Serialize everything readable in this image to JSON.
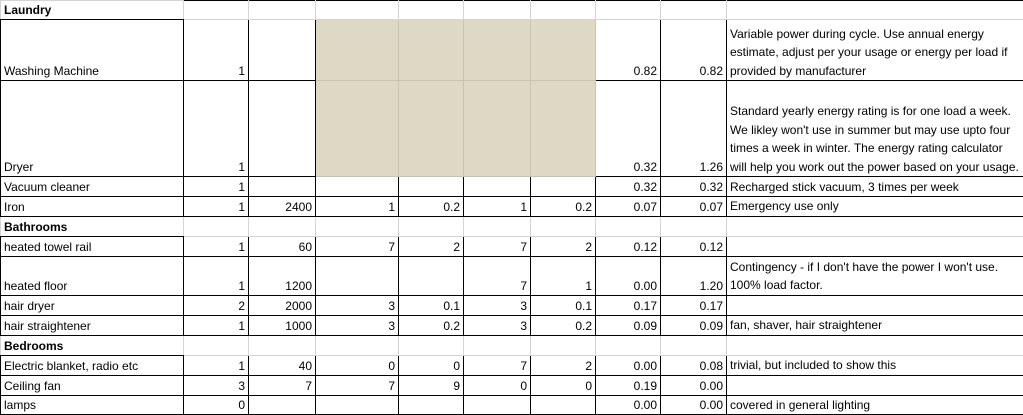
{
  "sections": [
    {
      "title": "Laundry",
      "rows": [
        [
          "Washing Machine",
          "1",
          null,
          null,
          null,
          null,
          null,
          "0.82",
          "0.82",
          "Variable power during cycle. Use annual energy estimate, adjust per your usage or energy per load if provided by manufacturer"
        ],
        [
          "Dryer",
          "1",
          null,
          null,
          null,
          null,
          null,
          "0.32",
          "1.26",
          "Standard yearly energy rating is for one load a week. We likley won't use in summer but may use upto four times a week in winter. The energy rating calculator will help you work out the power based on your usage."
        ],
        [
          "Vacuum cleaner",
          "1",
          null,
          null,
          null,
          null,
          null,
          "0.32",
          "0.32",
          "Recharged stick vacuum, 3 times per week"
        ],
        [
          "Iron",
          "1",
          "2400",
          "1",
          "0.2",
          "1",
          "0.2",
          "0.07",
          "0.07",
          "Emergency use only"
        ]
      ]
    },
    {
      "title": "Bathrooms",
      "rows": [
        [
          "heated towel rail",
          "1",
          "60",
          "7",
          "2",
          "7",
          "2",
          "0.12",
          "0.12",
          null
        ],
        [
          "heated floor",
          "1",
          "1200",
          null,
          null,
          "7",
          "1",
          "0.00",
          "1.20",
          "Contingency - if I don't have the power I won't use. 100% load factor."
        ],
        [
          "hair dryer",
          "2",
          "2000",
          "3",
          "0.1",
          "3",
          "0.1",
          "0.17",
          "0.17",
          null
        ],
        [
          "hair straightener",
          "1",
          "1000",
          "3",
          "0.2",
          "3",
          "0.2",
          "0.09",
          "0.09",
          "fan, shaver, hair straightener"
        ]
      ]
    },
    {
      "title": "Bedrooms",
      "rows": [
        [
          "Electric blanket, radio etc",
          "1",
          "40",
          "0",
          "0",
          "7",
          "2",
          "0.00",
          "0.08",
          "trivial, but included to show this"
        ],
        [
          "Ceiling fan",
          "3",
          "7",
          "7",
          "9",
          "0",
          "0",
          "0.19",
          "0.00",
          null
        ],
        [
          "lamps",
          "0",
          null,
          null,
          null,
          null,
          null,
          "0.00",
          "0.00",
          "covered in general lighting"
        ]
      ]
    }
  ]
}
